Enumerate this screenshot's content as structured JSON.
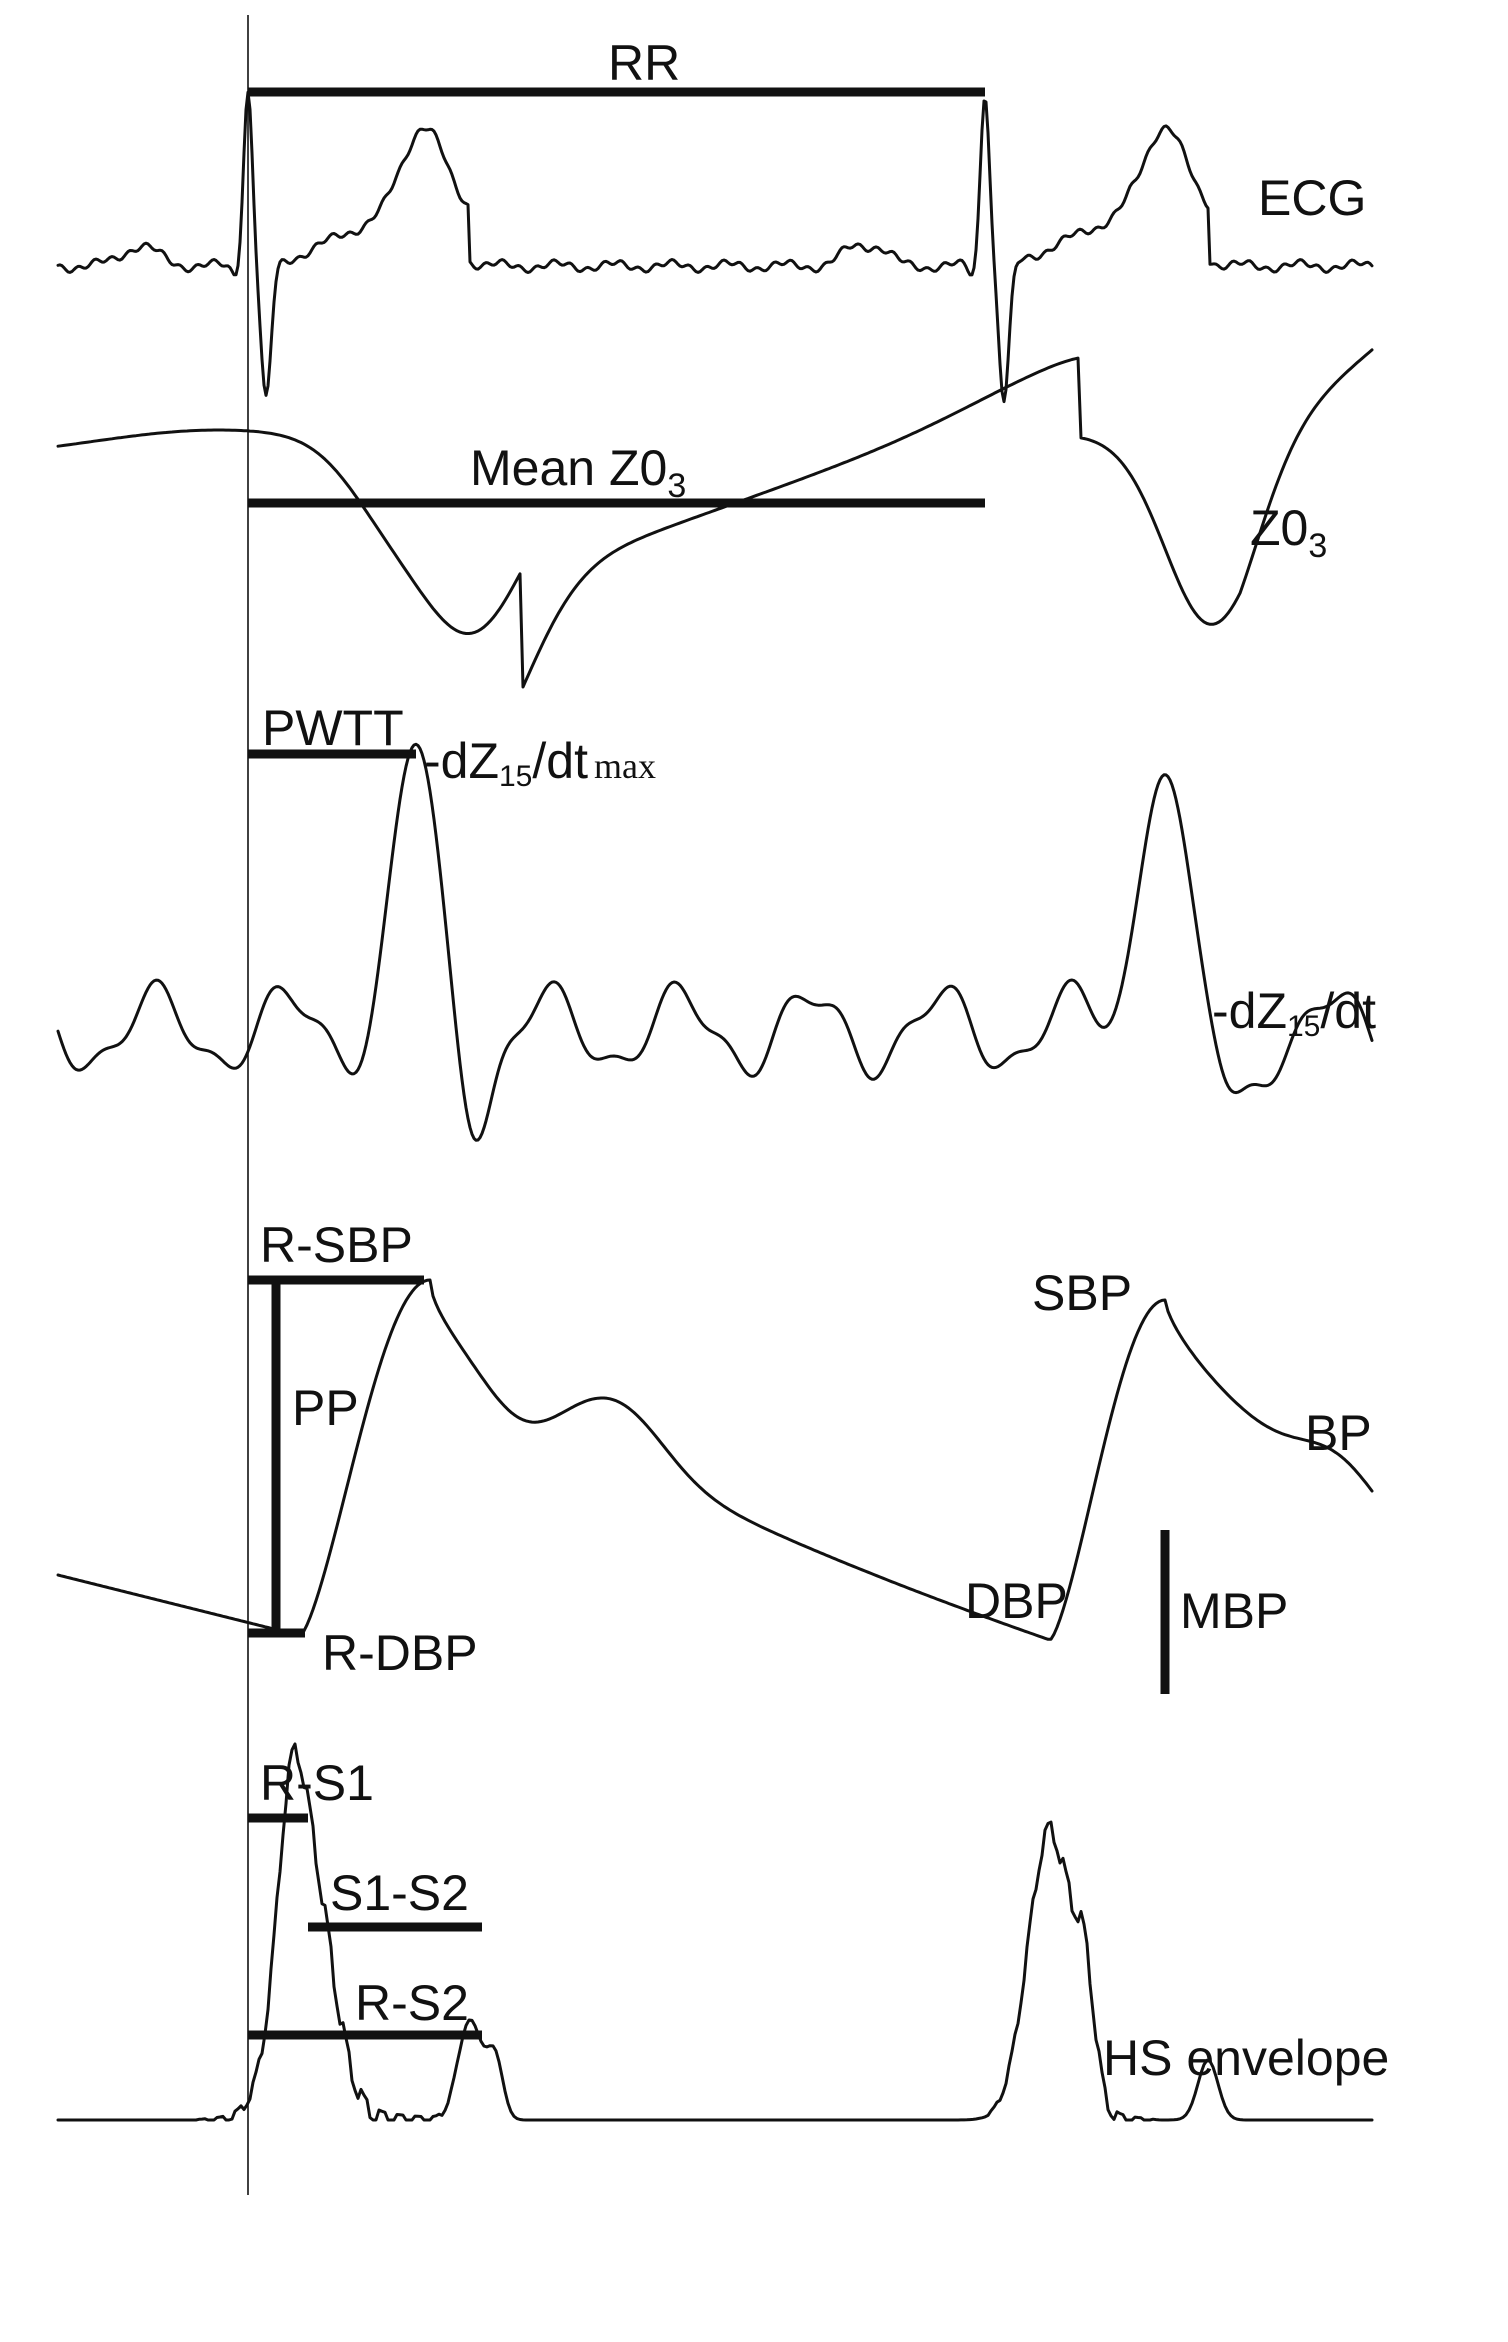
{
  "labels": {
    "rr": "RR",
    "ecg": "ECG",
    "mean_z0": "Mean Z0",
    "mean_z0_sub": "3",
    "z0": "Z0",
    "z0_sub": "3",
    "pwtt": "PWTT",
    "dzdt_max_prefix": "-dZ",
    "dzdt_max_sub": "15",
    "dzdt_max_suffix": "/dt",
    "dzdt_max_tag": "max",
    "dzdt_prefix": "-dZ",
    "dzdt_sub": "15",
    "dzdt_suffix": "/dt",
    "r_sbp": "R-SBP",
    "pp": "PP",
    "r_dbp": "R-DBP",
    "sbp": "SBP",
    "bp": "BP",
    "dbp": "DBP",
    "mbp": "MBP",
    "r_s1": "R-S1",
    "s1_s2": "S1-S2",
    "r_s2": "R-S2",
    "hs_envelope": "HS envelope"
  }
}
